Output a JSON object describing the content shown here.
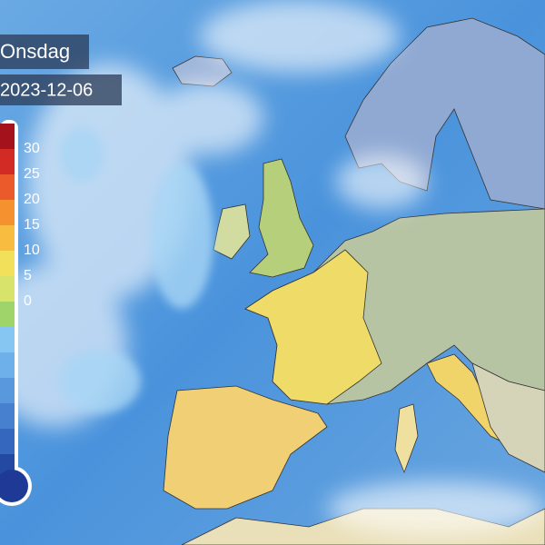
{
  "header": {
    "day": "Onsdag",
    "date": "2023-12-06"
  },
  "legend": {
    "labels": [
      30,
      25,
      20,
      15,
      10,
      5,
      0
    ]
  }
}
